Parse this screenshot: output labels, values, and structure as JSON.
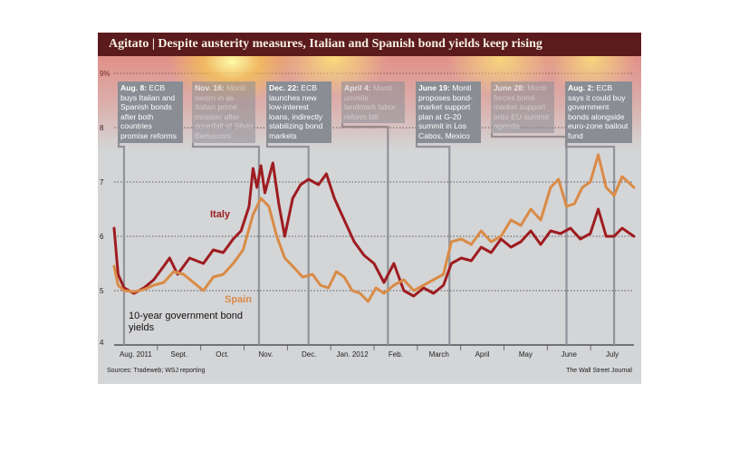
{
  "header": {
    "title": "Agitato | Despite austerity measures, Italian and Spanish bond yields keep rising"
  },
  "annotations": [
    {
      "date": "Aug. 8:",
      "text": "ECB buys Italian and Spanish bonds after both countries promise reforms",
      "x_index": 5,
      "faded": false
    },
    {
      "date": "Nov. 16:",
      "text": "Monti sworn in as Italian prime minister after downfall of Silvio Berlusconi",
      "x_index": 73,
      "faded": true
    },
    {
      "date": "Dec. 22:",
      "text": "ECB launches new low-interest loans, indirectly stabilizing bond markets",
      "x_index": 98,
      "faded": false
    },
    {
      "date": "April 4:",
      "text": "Monti unveils landmark labor reform bill",
      "x_index": 138,
      "faded": true
    },
    {
      "date": "June 19:",
      "text": "Monti proposes bond-market support plan at G-20 summit in Los Cabos, Mexico",
      "x_index": 169,
      "faded": false
    },
    {
      "date": "June 28:",
      "text": "Monti forces bond-market support onto EU summit agenda",
      "x_index": 228,
      "faded": true
    },
    {
      "date": "Aug. 2:",
      "text": "ECB says it could buy government bonds alongside euro-zone bailout fund",
      "x_index": 252,
      "faded": false
    }
  ],
  "legend": {
    "italy": "Italy",
    "spain": "Spain"
  },
  "chart_caption": "10-year government bond yields",
  "source": "Sources: Tradeweb; WSJ reporting",
  "credit": "The Wall Street Journal",
  "colors": {
    "italy": "#9e1c20",
    "spain": "#d98b46",
    "annotation": "#8a8d93",
    "plot_bg": "#d4d5d7",
    "title_bar": "#5b1a1c"
  },
  "chart_data": {
    "type": "line",
    "title": "Agitato | Despite austerity measures, Italian and Spanish bond yields keep rising",
    "ylabel": "",
    "ylim": [
      4,
      9
    ],
    "yticks": [
      4,
      5,
      6,
      7,
      8,
      9
    ],
    "ytick_labels": [
      "4",
      "5",
      "6",
      "7",
      "8",
      "9%"
    ],
    "x_months": [
      "Aug. 2011",
      "Sept.",
      "Oct.",
      "Nov.",
      "Dec.",
      "Jan. 2012",
      "Feb.",
      "March",
      "April",
      "May",
      "June",
      "July"
    ],
    "grid": true,
    "legend": "inline",
    "series": [
      {
        "name": "Italy",
        "key": "italy",
        "points": [
          [
            0,
            6.15
          ],
          [
            2,
            5.3
          ],
          [
            5,
            5.05
          ],
          [
            10,
            4.95
          ],
          [
            15,
            5.05
          ],
          [
            20,
            5.2
          ],
          [
            25,
            5.45
          ],
          [
            28,
            5.6
          ],
          [
            32,
            5.3
          ],
          [
            38,
            5.6
          ],
          [
            45,
            5.5
          ],
          [
            50,
            5.75
          ],
          [
            55,
            5.7
          ],
          [
            60,
            5.95
          ],
          [
            64,
            6.1
          ],
          [
            68,
            6.55
          ],
          [
            70,
            7.25
          ],
          [
            72,
            6.9
          ],
          [
            74,
            7.3
          ],
          [
            76,
            6.8
          ],
          [
            80,
            7.35
          ],
          [
            83,
            6.6
          ],
          [
            86,
            6.0
          ],
          [
            90,
            6.7
          ],
          [
            94,
            6.95
          ],
          [
            98,
            7.05
          ],
          [
            103,
            6.95
          ],
          [
            107,
            7.15
          ],
          [
            111,
            6.7
          ],
          [
            116,
            6.3
          ],
          [
            121,
            5.9
          ],
          [
            126,
            5.65
          ],
          [
            131,
            5.5
          ],
          [
            136,
            5.15
          ],
          [
            141,
            5.5
          ],
          [
            146,
            5.0
          ],
          [
            151,
            4.9
          ],
          [
            156,
            5.05
          ],
          [
            161,
            4.95
          ],
          [
            166,
            5.1
          ],
          [
            170,
            5.5
          ],
          [
            175,
            5.6
          ],
          [
            180,
            5.55
          ],
          [
            185,
            5.8
          ],
          [
            190,
            5.7
          ],
          [
            195,
            5.95
          ],
          [
            200,
            5.8
          ],
          [
            205,
            5.9
          ],
          [
            210,
            6.1
          ],
          [
            215,
            5.85
          ],
          [
            220,
            6.1
          ],
          [
            225,
            6.05
          ],
          [
            230,
            6.15
          ],
          [
            235,
            5.95
          ],
          [
            240,
            6.05
          ],
          [
            244,
            6.5
          ],
          [
            248,
            6.0
          ],
          [
            252,
            6.0
          ],
          [
            256,
            6.15
          ],
          [
            262,
            6.0
          ]
        ]
      },
      {
        "name": "Spain",
        "key": "spain",
        "points": [
          [
            0,
            5.45
          ],
          [
            2,
            5.1
          ],
          [
            5,
            5.0
          ],
          [
            10,
            4.98
          ],
          [
            15,
            5.02
          ],
          [
            20,
            5.1
          ],
          [
            25,
            5.15
          ],
          [
            30,
            5.35
          ],
          [
            35,
            5.3
          ],
          [
            40,
            5.15
          ],
          [
            45,
            5.0
          ],
          [
            50,
            5.25
          ],
          [
            55,
            5.3
          ],
          [
            60,
            5.5
          ],
          [
            65,
            5.75
          ],
          [
            70,
            6.4
          ],
          [
            74,
            6.7
          ],
          [
            78,
            6.55
          ],
          [
            82,
            6.0
          ],
          [
            86,
            5.6
          ],
          [
            90,
            5.45
          ],
          [
            95,
            5.25
          ],
          [
            100,
            5.3
          ],
          [
            104,
            5.1
          ],
          [
            108,
            5.05
          ],
          [
            112,
            5.35
          ],
          [
            116,
            5.25
          ],
          [
            120,
            5.0
          ],
          [
            124,
            4.95
          ],
          [
            128,
            4.8
          ],
          [
            132,
            5.05
          ],
          [
            136,
            4.95
          ],
          [
            141,
            5.1
          ],
          [
            146,
            5.2
          ],
          [
            151,
            5.0
          ],
          [
            156,
            5.1
          ],
          [
            161,
            5.2
          ],
          [
            166,
            5.3
          ],
          [
            170,
            5.9
          ],
          [
            175,
            5.95
          ],
          [
            180,
            5.85
          ],
          [
            185,
            6.1
          ],
          [
            190,
            5.9
          ],
          [
            195,
            6.0
          ],
          [
            200,
            6.3
          ],
          [
            205,
            6.2
          ],
          [
            210,
            6.5
          ],
          [
            215,
            6.3
          ],
          [
            220,
            6.9
          ],
          [
            224,
            7.05
          ],
          [
            228,
            6.55
          ],
          [
            232,
            6.6
          ],
          [
            236,
            6.9
          ],
          [
            240,
            7.0
          ],
          [
            244,
            7.5
          ],
          [
            248,
            6.9
          ],
          [
            252,
            6.75
          ],
          [
            256,
            7.1
          ],
          [
            262,
            6.9
          ]
        ]
      }
    ]
  }
}
